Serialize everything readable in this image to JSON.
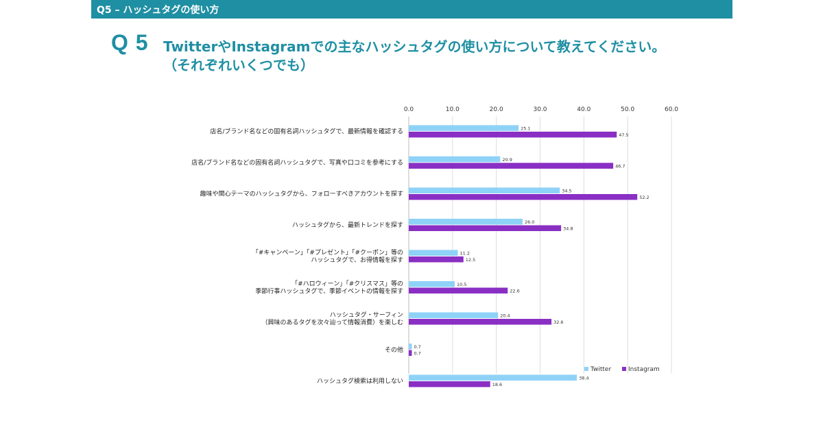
{
  "header": {
    "title": "Q5 – ハッシュタグの使い方"
  },
  "question": {
    "number": "Q 5",
    "line1": "TwitterやInstagramでの主なハッシュタグの使い方について教えてください。",
    "line2": "（それぞれいくつでも）"
  },
  "colors": {
    "header": "#1f8fa3",
    "twitter": "#8fd2f7",
    "instagram": "#8a2fc4"
  },
  "chart_data": {
    "type": "bar",
    "orientation": "horizontal",
    "xlim": [
      0,
      60
    ],
    "ticks": [
      "0.0",
      "10.0",
      "20.0",
      "30.0",
      "40.0",
      "50.0",
      "60.0"
    ],
    "grid": true,
    "legend_position": "bottom-right",
    "categories": [
      [
        "店名/ブランド名などの固有名詞ハッシュタグで、最新情報を確認する"
      ],
      [
        "店名/ブランド名などの固有名詞ハッシュタグで、写真や口コミを参考にする"
      ],
      [
        "趣味や関心テーマのハッシュタグから、フォローすべきアカウントを探す"
      ],
      [
        "ハッシュタグから、最新トレンドを探す"
      ],
      [
        "「#キャンペーン」「#プレゼント」「#クーポン」等の",
        "ハッシュタグで、お得情報を探す"
      ],
      [
        "「#ハロウィーン」「#クリスマス」等の",
        "季節行事ハッシュタグで、季節イベントの情報を探す"
      ],
      [
        "ハッシュタグ・サーフィン",
        "（興味のあるタグを次々辿って情報消費）を楽しむ"
      ],
      [
        "その他"
      ],
      [
        "ハッシュタグ検索は利用しない"
      ]
    ],
    "series": [
      {
        "name": "Twitter",
        "values": [
          25.1,
          20.9,
          34.5,
          26.0,
          11.2,
          10.5,
          20.4,
          0.7,
          38.4
        ]
      },
      {
        "name": "Instagram",
        "values": [
          47.5,
          46.7,
          52.2,
          34.8,
          12.5,
          22.6,
          32.6,
          0.7,
          18.6
        ]
      }
    ]
  }
}
